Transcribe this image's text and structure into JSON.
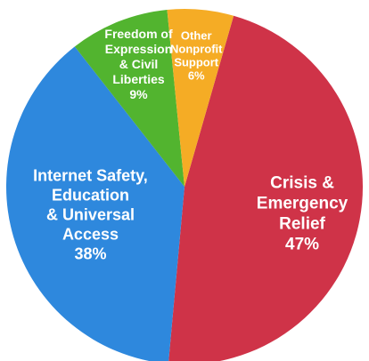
{
  "chart_data": {
    "type": "pie",
    "slices": [
      {
        "label": [
          "Crisis &",
          "Emergency",
          "Relief"
        ],
        "value": 47,
        "value_label": "47%",
        "color": "#cf3348"
      },
      {
        "label": [
          "Internet Safety,",
          "Education",
          "& Universal",
          "Access"
        ],
        "value": 38,
        "value_label": "38%",
        "color": "#2e88dd"
      },
      {
        "label": [
          "Freedom of",
          "Expression",
          "& Civil",
          "Liberties"
        ],
        "value": 9,
        "value_label": "9%",
        "color": "#52b42f"
      },
      {
        "label": [
          "Other",
          "Nonprofit",
          "Support"
        ],
        "value": 6,
        "value_label": "6%",
        "color": "#f5ac25"
      }
    ]
  }
}
